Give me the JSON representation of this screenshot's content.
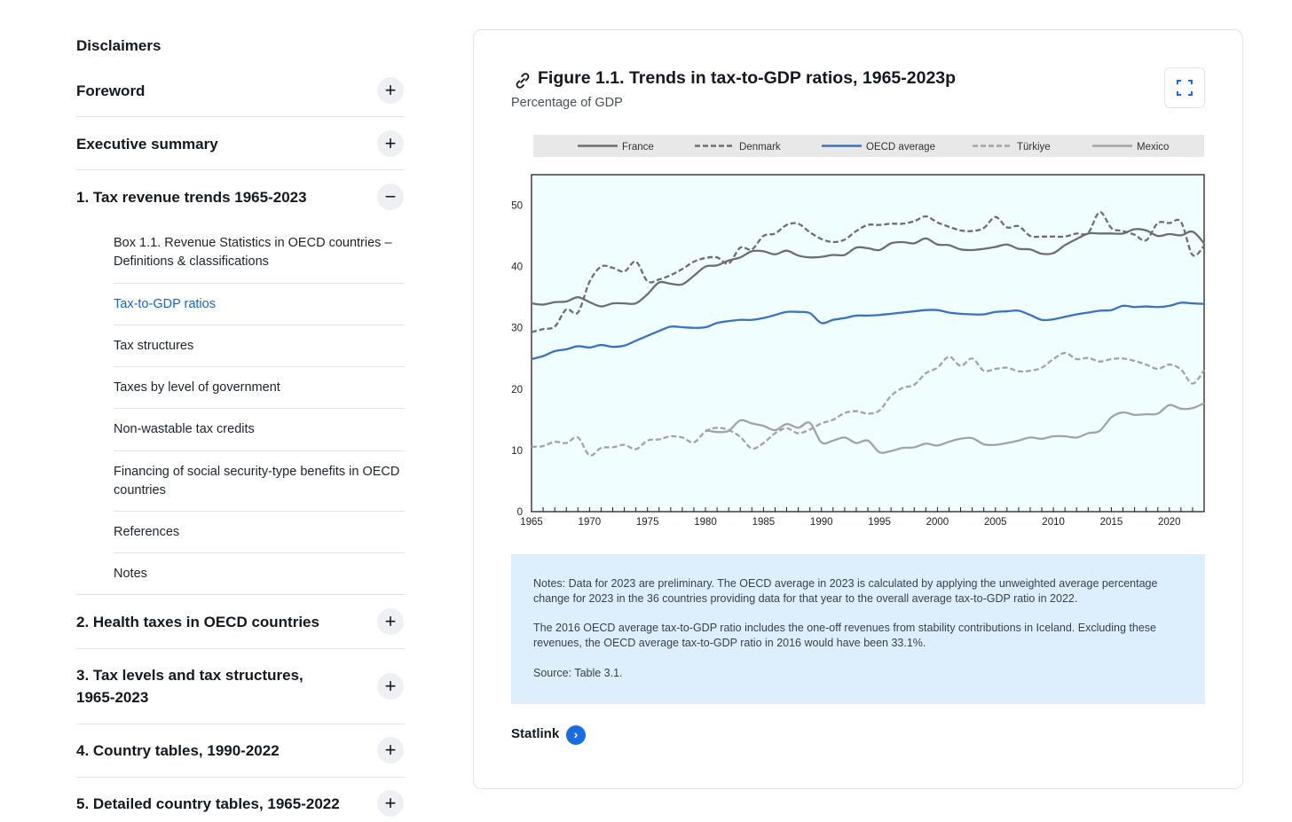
{
  "sidebar": {
    "disclaimers": "Disclaimers",
    "sections": [
      {
        "label": "Foreword",
        "toggle": "+"
      },
      {
        "label": "Executive summary",
        "toggle": "+"
      },
      {
        "label": "1. Tax revenue trends 1965-2023",
        "toggle": "−"
      },
      {
        "label": "2. Health taxes in OECD countries",
        "toggle": "+"
      },
      {
        "label": "3. Tax levels and tax structures, 1965-2023",
        "toggle": "+"
      },
      {
        "label": "4. Country tables, 1990-2022",
        "toggle": "+"
      },
      {
        "label": "5. Detailed country tables, 1965-2022",
        "toggle": "+"
      }
    ],
    "subitems": [
      "Box 1.1. Revenue Statistics in OECD countries – Definitions & classifications",
      "Tax-to-GDP ratios",
      "Tax structures",
      "Taxes by level of government",
      "Non-wastable tax credits",
      "Financing of social security-type benefits in OECD countries",
      "References",
      "Notes"
    ],
    "active_subitem": "Tax-to-GDP ratios"
  },
  "figure": {
    "title": "Figure 1.1. Trends in tax-to-GDP ratios, 1965-2023p",
    "subtitle": "Percentage of GDP",
    "notes": [
      "Notes: Data for 2023 are preliminary. The OECD average in 2023 is calculated by applying the unweighted average percentage change for 2023 in the 36 countries providing data for that year to the overall average tax-to-GDP ratio in 2022.",
      "The 2016 OECD average tax-to-GDP ratio includes the one-off revenues from stability contributions in Iceland. Excluding these revenues, the OECD average tax-to-GDP ratio in 2016 would have been 33.1%.",
      "Source: Table 3.1."
    ],
    "statlink": "Statlink"
  },
  "colors": {
    "accent": "#1a6ae0",
    "plot_bg": "#f0feff",
    "legend_bg": "#e8e8e8"
  },
  "chart_data": {
    "type": "line",
    "title": "Figure 1.1. Trends in tax-to-GDP ratios, 1965-2023p",
    "ylabel": "Percentage of GDP",
    "xlim": [
      1965,
      2023
    ],
    "ylim": [
      0,
      55
    ],
    "yticks": [
      "0",
      "10",
      "20",
      "30",
      "40",
      "50"
    ],
    "xticks": [
      "1965",
      "1970",
      "1975",
      "1980",
      "1985",
      "1990",
      "1995",
      "2000",
      "2005",
      "2010",
      "2015",
      "2020"
    ],
    "legend_position": "top",
    "series": [
      {
        "name": "France",
        "start": 1965,
        "color": "#6e6e6e",
        "dash": "solid",
        "values": [
          34,
          33.8,
          34.2,
          34.3,
          35,
          34.2,
          33.5,
          34,
          34,
          34,
          35.5,
          37.4,
          37.2,
          37.1,
          38.5,
          40,
          40.2,
          41,
          41.5,
          42.5,
          42.5,
          42,
          42.6,
          41.8,
          41.5,
          41.6,
          41.9,
          41.9,
          43.1,
          43,
          42.7,
          43.8,
          44,
          43.8,
          44.6,
          43.6,
          43.5,
          42.8,
          42.7,
          42.9,
          43.2,
          43.6,
          42.9,
          42.8,
          42.1,
          42.2,
          43.5,
          44.5,
          45.4,
          45.4,
          45.4,
          45.4,
          46.1,
          45.9,
          45,
          45.3,
          45.1,
          45.7,
          43.8
        ]
      },
      {
        "name": "Denmark",
        "start": 1965,
        "color": "#6e6e6e",
        "dash": "dashed",
        "values": [
          29.3,
          29.8,
          30.2,
          33,
          32.5,
          37.5,
          40,
          39.8,
          39.2,
          40.8,
          37.6,
          37.9,
          38.6,
          39.6,
          40.8,
          41.4,
          41.5,
          40.5,
          43.1,
          42.8,
          45,
          45.4,
          46.8,
          47,
          45.6,
          44.5,
          44,
          44.4,
          45.8,
          46.8,
          46.8,
          47,
          47,
          47.4,
          48.2,
          47.2,
          46.5,
          45.9,
          45.8,
          46.3,
          48.1,
          46.4,
          46.6,
          45,
          44.9,
          44.9,
          44.9,
          45.4,
          45.5,
          48.9,
          46.3,
          45.8,
          45.2,
          44.3,
          47.1,
          47.1,
          47.3,
          41.9,
          43.4
        ]
      },
      {
        "name": "OECD average",
        "start": 1965,
        "color": "#3a72c4",
        "dash": "solid",
        "values": [
          24.9,
          25.4,
          26.2,
          26.5,
          27,
          26.8,
          27.2,
          26.9,
          27.1,
          27.9,
          28.7,
          29.5,
          30.2,
          30.1,
          30,
          30.1,
          30.8,
          31.1,
          31.3,
          31.3,
          31.6,
          32.1,
          32.6,
          32.6,
          32.4,
          30.8,
          31.3,
          31.6,
          32,
          32,
          32.1,
          32.3,
          32.5,
          32.7,
          32.9,
          32.9,
          32.5,
          32.3,
          32.2,
          32.2,
          32.6,
          32.7,
          32.8,
          32.1,
          31.3,
          31.4,
          31.8,
          32.2,
          32.5,
          32.8,
          32.9,
          33.6,
          33.4,
          33.5,
          33.4,
          33.6,
          34.1,
          34,
          33.9
        ]
      },
      {
        "name": "Türkiye",
        "start": 1965,
        "color": "#a3a3a3",
        "dash": "dashed",
        "values": [
          10.6,
          10.7,
          11.4,
          11.2,
          12.1,
          9.2,
          10.4,
          10.5,
          10.9,
          10.2,
          11.6,
          11.8,
          12.3,
          12.1,
          11.3,
          13.1,
          13.7,
          13.3,
          12.2,
          10.3,
          11.2,
          12.8,
          13.6,
          12.8,
          13.4,
          14.4,
          15,
          16.1,
          16.4,
          16,
          16.5,
          18.9,
          20.2,
          20.7,
          22.6,
          23.5,
          25.3,
          23.8,
          25,
          23,
          23.3,
          23.5,
          22.9,
          23,
          23.5,
          24.9,
          25.9,
          24.9,
          25.1,
          24.5,
          24.9,
          25,
          24.6,
          24,
          23.3,
          24,
          23.2,
          20.9,
          23.1
        ]
      },
      {
        "name": "Mexico",
        "start": 1980,
        "color": "#a3a3a3",
        "dash": "solid",
        "values": [
          13.3,
          13,
          13.2,
          14.9,
          14.4,
          14,
          13.3,
          14.3,
          13.7,
          14.5,
          11.3,
          11.6,
          12.1,
          11.2,
          11.6,
          9.7,
          9.9,
          10.4,
          10.5,
          11.1,
          10.8,
          11.4,
          11.9,
          12,
          11,
          10.9,
          11.2,
          11.6,
          12.1,
          11.9,
          12.3,
          12.3,
          12.1,
          12.8,
          13.2,
          15.4,
          16.2,
          15.8,
          15.9,
          16,
          17.4,
          16.8,
          16.9,
          17.7
        ]
      }
    ]
  }
}
